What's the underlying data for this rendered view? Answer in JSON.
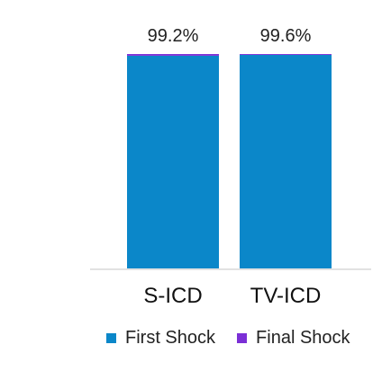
{
  "chart_data": {
    "type": "bar",
    "stacked": true,
    "categories": [
      "S-ICD",
      "TV-ICD"
    ],
    "series": [
      {
        "name": "First Shock",
        "values": [
          99.2,
          99.6
        ],
        "color": "#0B87C9"
      },
      {
        "name": "Final Shock",
        "values": [
          0.8,
          0.4
        ],
        "color": "#7B2FD6"
      }
    ],
    "data_labels": [
      "99.2%",
      "99.6%"
    ],
    "ylim": [
      0,
      100
    ],
    "grid": false,
    "legend": "bottom"
  }
}
